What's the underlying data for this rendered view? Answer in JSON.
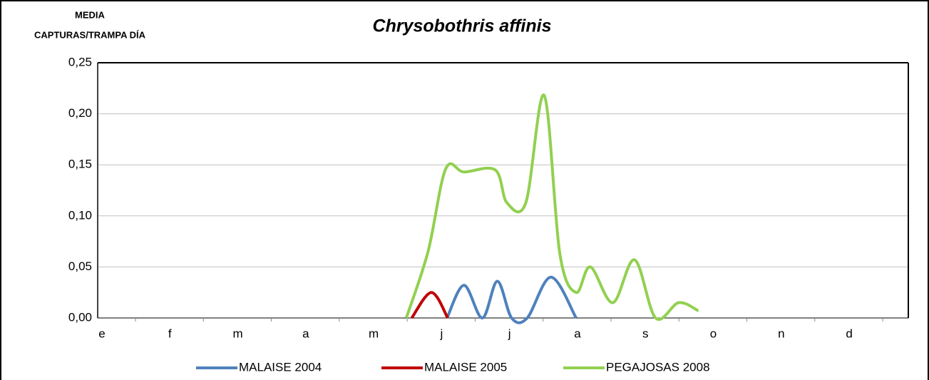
{
  "chart_data": {
    "type": "line",
    "title": "Chrysobothris affinis",
    "y_label": [
      "MEDIA",
      "CAPTURAS/TRAMPA DÍA"
    ],
    "xlim": [
      -0.063,
      11.87
    ],
    "xticks": [
      {
        "value": 0,
        "label": "e"
      },
      {
        "value": 1,
        "label": "f"
      },
      {
        "value": 2,
        "label": "m"
      },
      {
        "value": 3,
        "label": "a"
      },
      {
        "value": 4,
        "label": "m"
      },
      {
        "value": 5,
        "label": "j"
      },
      {
        "value": 6,
        "label": "j"
      },
      {
        "value": 7,
        "label": "a"
      },
      {
        "value": 8,
        "label": "s"
      },
      {
        "value": 9,
        "label": "o"
      },
      {
        "value": 10,
        "label": "n"
      },
      {
        "value": 11,
        "label": "d"
      }
    ],
    "ylim": [
      0,
      0.25
    ],
    "yticks": [
      {
        "value": 0,
        "label": "0,00"
      },
      {
        "value": 0.05,
        "label": "0,05"
      },
      {
        "value": 0.1,
        "label": "0,10"
      },
      {
        "value": 0.15,
        "label": "0,15"
      },
      {
        "value": 0.2,
        "label": "0,20"
      },
      {
        "value": 0.25,
        "label": "0,25"
      }
    ],
    "grid": true,
    "legend": "bottom",
    "series": [
      {
        "name": "MALAISE 2004",
        "color": "#4f81bd",
        "x": [
          5.08,
          5.33,
          5.6,
          5.82,
          6.03,
          6.26,
          6.61,
          6.98
        ],
        "values": [
          0,
          0.032,
          0,
          0.036,
          0,
          0,
          0.04,
          0
        ]
      },
      {
        "name": "MALAISE 2005",
        "color": "#c00000",
        "x": [
          4.56,
          4.85,
          5.09
        ],
        "values": [
          0,
          0.025,
          0
        ]
      },
      {
        "name": "PEGAJOSAS 2008",
        "color": "#92d050",
        "x": [
          4.48,
          4.8,
          5.06,
          5.33,
          5.79,
          5.96,
          6.24,
          6.51,
          6.74,
          6.98,
          7.19,
          7.52,
          7.84,
          8.15,
          8.49,
          8.78
        ],
        "values": [
          0,
          0.065,
          0.146,
          0.143,
          0.145,
          0.113,
          0.113,
          0.218,
          0.063,
          0.025,
          0.05,
          0.015,
          0.057,
          0,
          0.015,
          0.007
        ]
      }
    ]
  }
}
